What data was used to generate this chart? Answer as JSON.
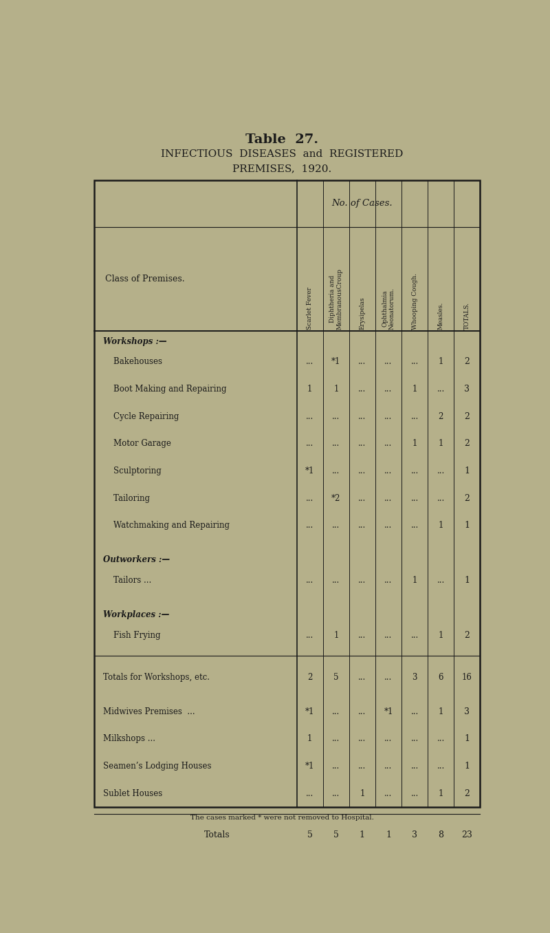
{
  "title_line1": "Table  27.",
  "title_line2": "INFECTIOUS  DISEASES  and  REGISTERED",
  "title_line3": "PREMISES,  1920.",
  "bg_color": "#b5b08a",
  "text_color": "#1a1a1a",
  "col_headers": [
    "Scarlet Fever",
    "Diphtheria and\nMembranousCroup",
    "Erysipelas",
    "Ophthalmia\nNeonatorum.",
    "Whooping Cough.",
    "Measles.",
    "TOTALS."
  ],
  "col_header_top": "No. of Cases.",
  "row_header": "Class of Premises.",
  "sections": [
    {
      "header": "Workshops :—",
      "rows": [
        {
          "label": "    Bakehouses",
          "dots": "...",
          "values": [
            "...",
            "*1",
            "...",
            "...",
            "...",
            "1",
            "2"
          ]
        },
        {
          "label": "    Boot Making and Repairing",
          "dots": "...",
          "values": [
            "1",
            "1",
            "...",
            "...",
            "1",
            "...",
            "3"
          ]
        },
        {
          "label": "    Cycle Repairing",
          "dots": "...",
          "values": [
            "...",
            "...",
            "...",
            "...",
            "...",
            "2",
            "2"
          ]
        },
        {
          "label": "    Motor Garage",
          "dots": "...",
          "values": [
            "...",
            "...",
            "...",
            "...",
            "1",
            "1",
            "2"
          ]
        },
        {
          "label": "    Sculptoring",
          "dots": "...",
          "values": [
            "*1",
            "...",
            "...",
            "...",
            "...",
            "...",
            "1"
          ]
        },
        {
          "label": "    Tailoring",
          "dots": "...",
          "values": [
            "...",
            "*2",
            "...",
            "...",
            "...",
            "...",
            "2"
          ]
        },
        {
          "label": "    Watchmaking and Repairing",
          "dots": "...",
          "values": [
            "...",
            "...",
            "...",
            "...",
            "...",
            "1",
            "1"
          ]
        }
      ]
    },
    {
      "header": "Outworkers :—",
      "rows": [
        {
          "label": "    Tailors ...",
          "dots": "...",
          "values": [
            "...",
            "...",
            "...",
            "...",
            "1",
            "...",
            "1"
          ]
        }
      ]
    },
    {
      "header": "Workplaces :—",
      "rows": [
        {
          "label": "    Fish Frying",
          "dots": "...",
          "values": [
            "...",
            "1",
            "...",
            "...",
            "...",
            "1",
            "2"
          ]
        }
      ]
    }
  ],
  "subtotal_row": {
    "label": "Totals for Workshops, etc.",
    "dots": "...",
    "values": [
      "2",
      "5",
      "...",
      "...",
      "3",
      "6",
      "16"
    ]
  },
  "extra_rows": [
    {
      "label": "Midwives Premises  ...",
      "values": [
        "*1",
        "...",
        "...",
        "*1",
        "...",
        "1",
        "3"
      ]
    },
    {
      "label": "Milkshops ...",
      "values": [
        "1",
        "...",
        "...",
        "...",
        "...",
        "...",
        "1"
      ]
    },
    {
      "label": "Seamen’s Lodging Houses",
      "values": [
        "*1",
        "...",
        "...",
        "...",
        "...",
        "...",
        "1"
      ]
    },
    {
      "label": "Sublet Houses",
      "values": [
        "...",
        "...",
        "1",
        "...",
        "...",
        "1",
        "2"
      ]
    }
  ],
  "total_row": {
    "label": "Totals",
    "values": [
      "5",
      "5",
      "1",
      "1",
      "3",
      "8",
      "23"
    ]
  },
  "footnote": "The cases marked * were not removed to Hospital."
}
